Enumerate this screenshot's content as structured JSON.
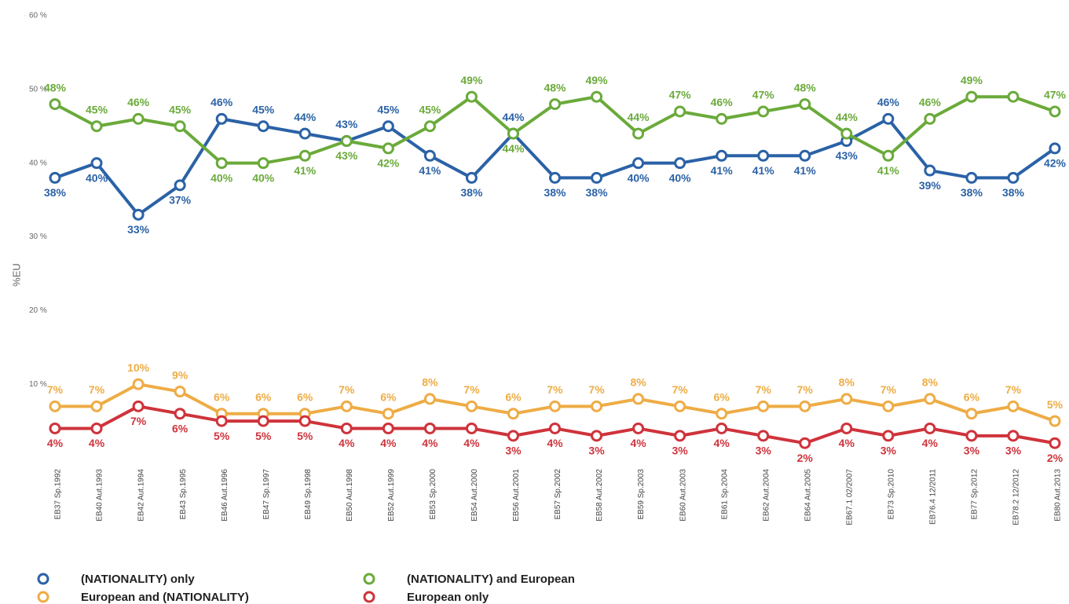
{
  "chart_data": {
    "type": "line",
    "y_label": "%EU",
    "categories": [
      "EB37 Sp.1992",
      "EB40 Aut.1993",
      "EB42 Aut.1994",
      "EB43 Sp.1995",
      "EB46 Aut.1996",
      "EB47 Sp.1997",
      "EB49 Sp.1998",
      "EB50 Aut.1998",
      "EB52 Aut.1999",
      "EB53 Sp.2000",
      "EB54 Aut.2000",
      "EB56 Aut.2001",
      "EB57 Sp.2002",
      "EB58 Aut.2002",
      "EB59 Sp.2003",
      "EB60 Aut.2003",
      "EB61 Sp.2004",
      "EB62 Aut.2004",
      "EB64 Aut.2005",
      "EB67.1 02/2007",
      "EB73 Sp.2010",
      "EB76.4 12/2011",
      "EB77 Sp.2012",
      "EB78.2 12/2012",
      "EB80 Aut.2013"
    ],
    "ylim": [
      0,
      60
    ],
    "yticks": [
      {
        "value": 10,
        "label": "10 %"
      },
      {
        "value": 20,
        "label": "20 %"
      },
      {
        "value": 30,
        "label": "30 %"
      },
      {
        "value": 40,
        "label": "40 %"
      },
      {
        "value": 50,
        "label": "50 %"
      },
      {
        "value": 60,
        "label": "60 %"
      }
    ],
    "series": [
      {
        "name": "(NATIONALITY) only",
        "color": "#2b62a6",
        "values": [
          38,
          40,
          33,
          37,
          46,
          45,
          44,
          43,
          45,
          41,
          38,
          44,
          38,
          38,
          40,
          40,
          41,
          41,
          41,
          43,
          46,
          39,
          38,
          38,
          42
        ],
        "value_labels": [
          "38%",
          "40%",
          "33%",
          "37%",
          "46%",
          "45%",
          "44%",
          "43%",
          "45%",
          "41%",
          "38%",
          "44%",
          "38%",
          "38%",
          "40%",
          "40%",
          "41%",
          "41%",
          "41%",
          "43%",
          "46%",
          "39%",
          "38%",
          "38%",
          "42%"
        ]
      },
      {
        "name": "(NATIONALITY) and European",
        "color": "#6aaa3a",
        "values": [
          48,
          45,
          46,
          45,
          40,
          40,
          41,
          43,
          42,
          45,
          49,
          44,
          48,
          49,
          44,
          47,
          46,
          47,
          48,
          44,
          41,
          46,
          49,
          49,
          47
        ],
        "value_labels": [
          "48%",
          "45%",
          "46%",
          "45%",
          "40%",
          "40%",
          "41%",
          "43%",
          "42%",
          "45%",
          "49%",
          "44%",
          "48%",
          "49%",
          "44%",
          "47%",
          "46%",
          "47%",
          "48%",
          "44%",
          "41%",
          "46%",
          "49%",
          null,
          "47%"
        ]
      },
      {
        "name": "European and (NATIONALITY)",
        "color": "#eeac45",
        "values": [
          7,
          7,
          10,
          9,
          6,
          6,
          6,
          7,
          6,
          8,
          7,
          6,
          7,
          7,
          8,
          7,
          6,
          7,
          7,
          8,
          7,
          8,
          6,
          7,
          5
        ],
        "value_labels": [
          "7%",
          "7%",
          "10%",
          "9%",
          "6%",
          "6%",
          "6%",
          "7%",
          "6%",
          "8%",
          "7%",
          "6%",
          "7%",
          "7%",
          "8%",
          "7%",
          "6%",
          "7%",
          "7%",
          "8%",
          "7%",
          "8%",
          "6%",
          "7%",
          "5%"
        ]
      },
      {
        "name": "European only",
        "color": "#cf333b",
        "values": [
          4,
          4,
          7,
          6,
          5,
          5,
          5,
          4,
          4,
          4,
          4,
          3,
          4,
          3,
          4,
          3,
          4,
          3,
          2,
          4,
          3,
          4,
          3,
          3,
          2
        ],
        "value_labels": [
          "4%",
          "4%",
          "7%",
          "6%",
          "5%",
          "5%",
          "5%",
          "4%",
          "4%",
          "4%",
          "4%",
          "3%",
          "4%",
          "3%",
          "4%",
          "3%",
          "4%",
          "3%",
          "2%",
          "4%",
          "3%",
          "4%",
          "3%",
          "3%",
          "2%"
        ]
      }
    ]
  }
}
